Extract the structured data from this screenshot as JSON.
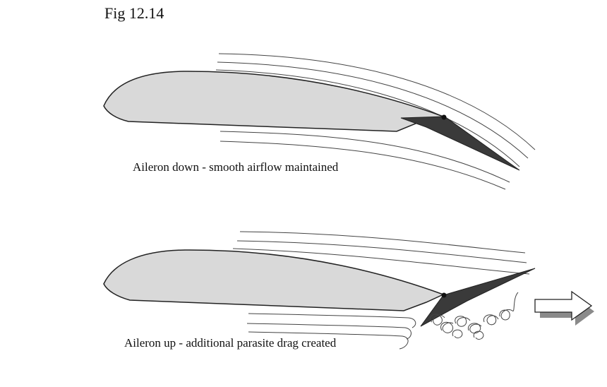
{
  "figure": {
    "title": "Fig 12.14"
  },
  "diagrams": [
    {
      "caption": "Aileron down - smooth airflow maintained"
    },
    {
      "caption": "Aileron up - additional parasite drag created"
    }
  ],
  "colors": {
    "airfoil_fill": "#d9d9d9",
    "aileron_fill": "#3a3a3a",
    "stroke": "#222222",
    "arrow_shadow": "#8a8a8a"
  },
  "icons": [
    "hinge-dot-icon",
    "flow-direction-arrow-icon"
  ]
}
